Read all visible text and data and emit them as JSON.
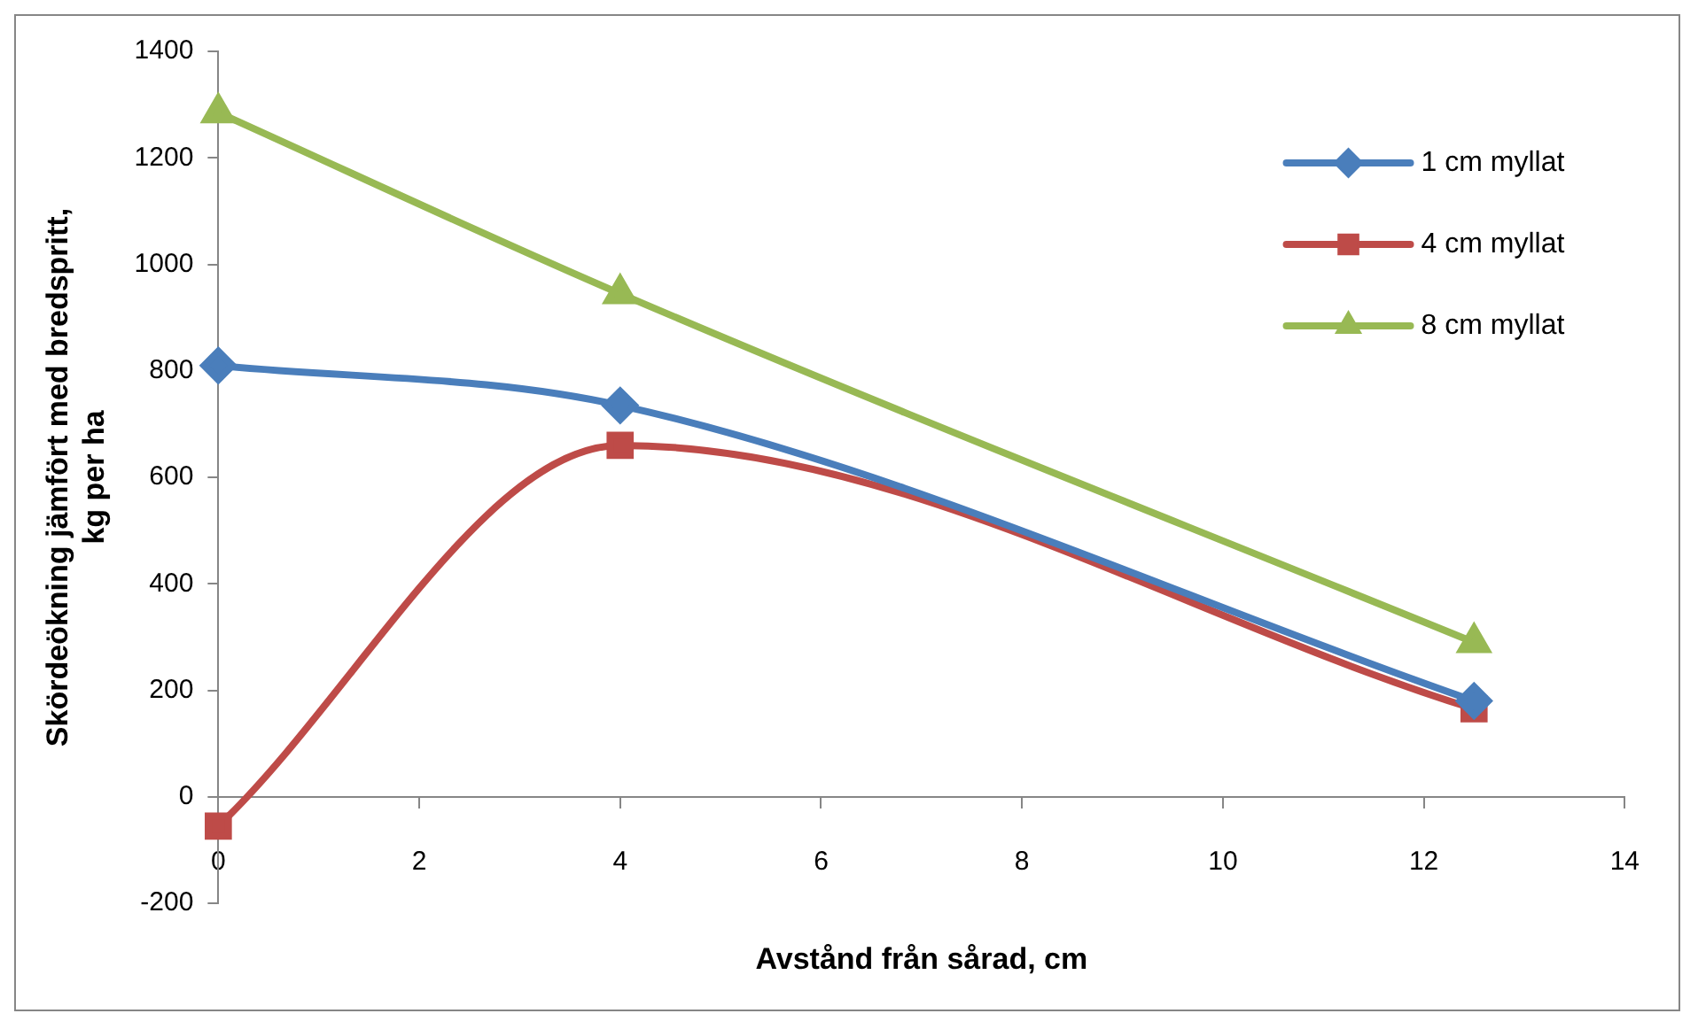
{
  "chart_data": {
    "type": "line",
    "xlabel": "Avstånd från sårad, cm",
    "ylabel": "Skördeökning jämfört med bredspritt, kg per ha",
    "xlim": [
      0,
      14
    ],
    "xticks": [
      0,
      2,
      4,
      6,
      8,
      10,
      12,
      14
    ],
    "ylim": [
      -200,
      1400
    ],
    "yticks": [
      -200,
      0,
      200,
      400,
      600,
      800,
      1000,
      1200,
      1400
    ],
    "grid": false,
    "legend": "top right",
    "line_style": "solid",
    "series": [
      {
        "name": "1 cm myllat",
        "color": "#4a7ebb",
        "marker": "diamond",
        "x": [
          0,
          4,
          12.5
        ],
        "values": [
          810,
          735,
          180
        ]
      },
      {
        "name": "4 cm myllat",
        "color": "#be4b48",
        "marker": "square",
        "x": [
          0,
          4,
          12.5
        ],
        "values": [
          -55,
          660,
          165
        ]
      },
      {
        "name": "8 cm myllat",
        "color": "#98b954",
        "marker": "triangle",
        "x": [
          0,
          4,
          12.5
        ],
        "values": [
          1285,
          945,
          290
        ]
      }
    ]
  }
}
